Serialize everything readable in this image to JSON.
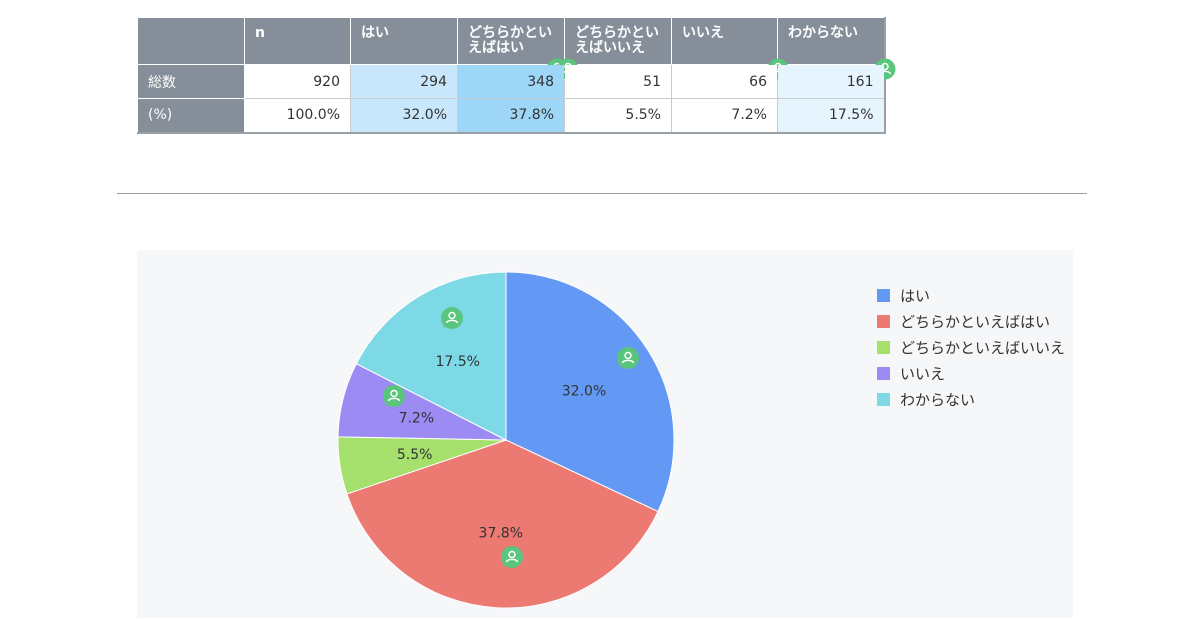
{
  "table": {
    "columns": [
      "n",
      "はい",
      "どちらかといえばはい",
      "どちらかといえばいいえ",
      "いいえ",
      "わからない"
    ],
    "columns_display": [
      [
        "n"
      ],
      [
        "はい"
      ],
      [
        "どちらかとい",
        "えばはい"
      ],
      [
        "どちらかとい",
        "えばいいえ"
      ],
      [
        "いいえ"
      ],
      [
        "わからない"
      ]
    ],
    "rows": [
      {
        "label": "総数",
        "values": [
          "920",
          "294",
          "348",
          "51",
          "66",
          "161"
        ]
      },
      {
        "label": "(%)",
        "values": [
          "100.0%",
          "32.0%",
          "37.8%",
          "5.5%",
          "7.2%",
          "17.5%"
        ]
      }
    ]
  },
  "chart_data": {
    "type": "pie",
    "labels": [
      "はい",
      "どちらかといえばはい",
      "どちらかといえばいいえ",
      "いいえ",
      "わからない"
    ],
    "values": [
      32.0,
      37.8,
      5.5,
      7.2,
      17.5
    ],
    "value_labels": [
      "32.0%",
      "37.8%",
      "5.5%",
      "7.2%",
      "17.5%"
    ],
    "colors": [
      "#6399f4",
      "#ec7a73",
      "#a5e06c",
      "#9b8bf3",
      "#7dd9e6"
    ],
    "legend_position": "right",
    "start_angle": "12 o'clock, clockwise"
  },
  "colors": {
    "header_bg": "#868e99",
    "highlight_light": "#c9e7fb",
    "highlight_strong": "#9dd6f7",
    "highlight_faint": "#e6f4fd",
    "badge": "#5ac57d"
  },
  "icons": {
    "comment_badge": "user-comment-icon"
  }
}
